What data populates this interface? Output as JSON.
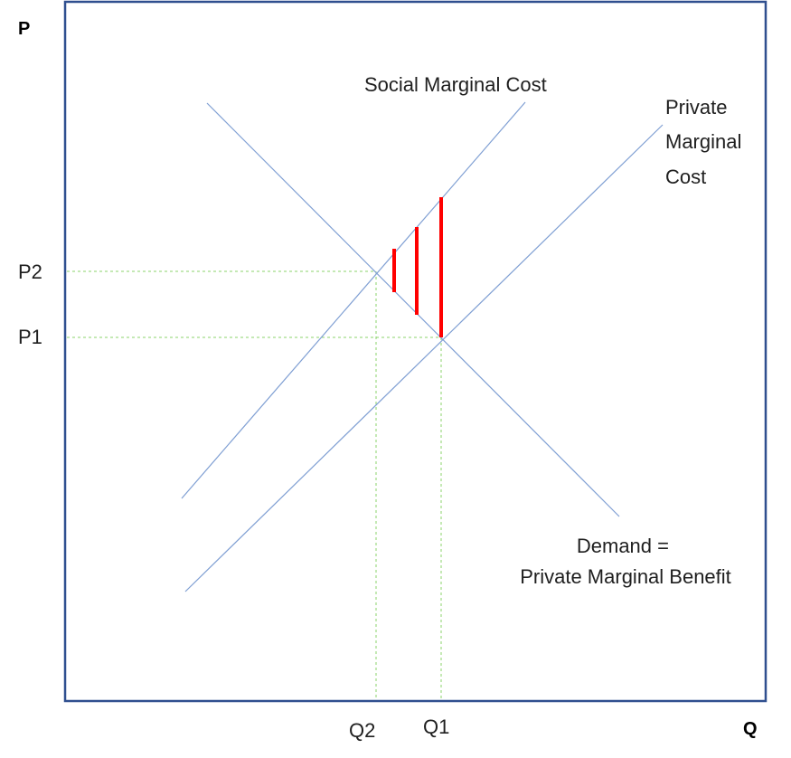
{
  "axes": {
    "y_title": "P",
    "x_title": "Q"
  },
  "price_labels": {
    "p2": "P2",
    "p1": "P1"
  },
  "quantity_labels": {
    "q2": "Q2",
    "q1": "Q1"
  },
  "curves": {
    "social_mc": "Social Marginal Cost",
    "private_mc": [
      "Private",
      "Marginal",
      "Cost"
    ],
    "demand": [
      "Demand =",
      "Private Marginal Benefit"
    ]
  },
  "colors": {
    "frame": "#2f4f8f",
    "curve": "#7f9fd3",
    "guide": "#8bd36b",
    "externality": "#ff0000",
    "text": "#1f1f1f"
  }
}
